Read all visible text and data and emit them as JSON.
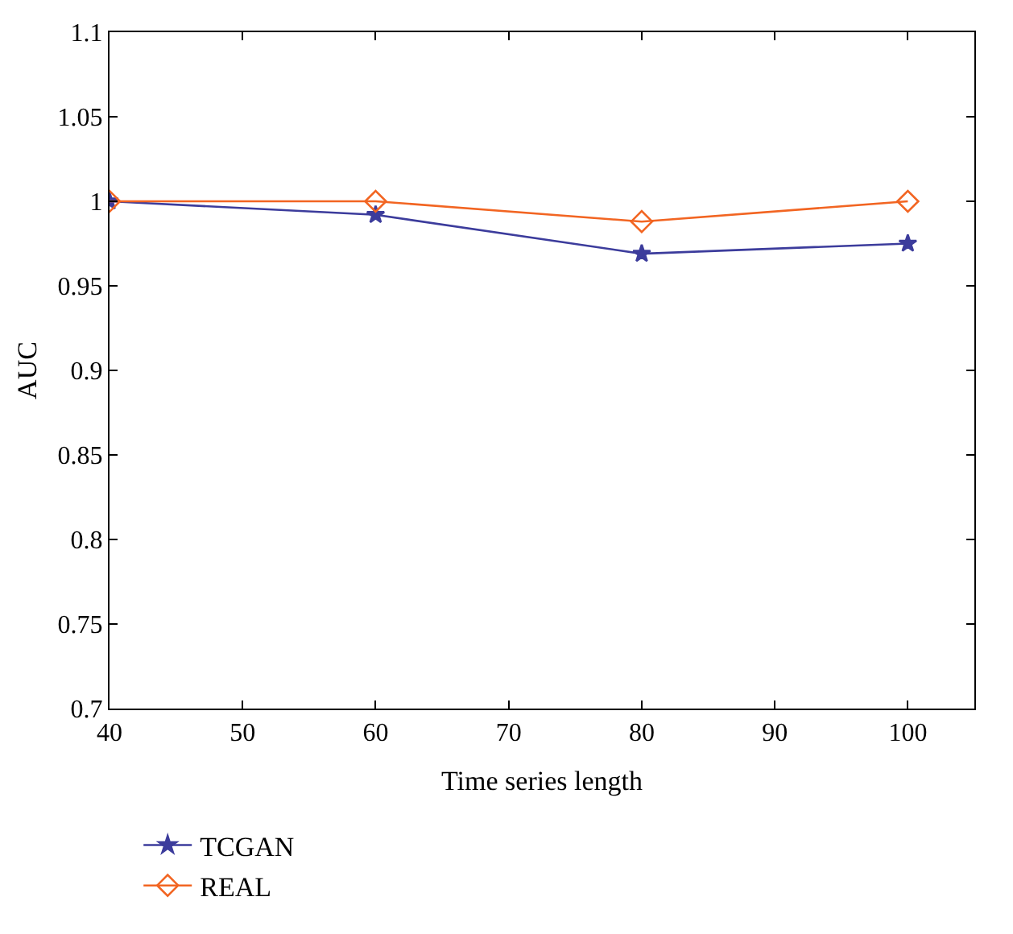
{
  "chart_data": {
    "type": "line",
    "xlabel": "Time series length",
    "ylabel": "AUC",
    "x": [
      40,
      60,
      80,
      100
    ],
    "series": [
      {
        "name": "TCGAN",
        "color": "#3c3c9c",
        "marker": "star",
        "values": [
          1.0,
          0.992,
          0.969,
          0.975
        ]
      },
      {
        "name": "REAL",
        "color": "#f26522",
        "marker": "diamond",
        "values": [
          1.0,
          1.0,
          0.988,
          1.0
        ]
      }
    ],
    "xlim": [
      40,
      105
    ],
    "xticks": [
      40,
      50,
      60,
      70,
      80,
      90,
      100
    ],
    "ylim": [
      0.7,
      1.1
    ],
    "yticks": [
      0.7,
      0.75,
      0.8,
      0.85,
      0.9,
      0.95,
      1,
      1.05,
      1.1
    ],
    "legend": "bottom left",
    "line_style": "solid"
  }
}
